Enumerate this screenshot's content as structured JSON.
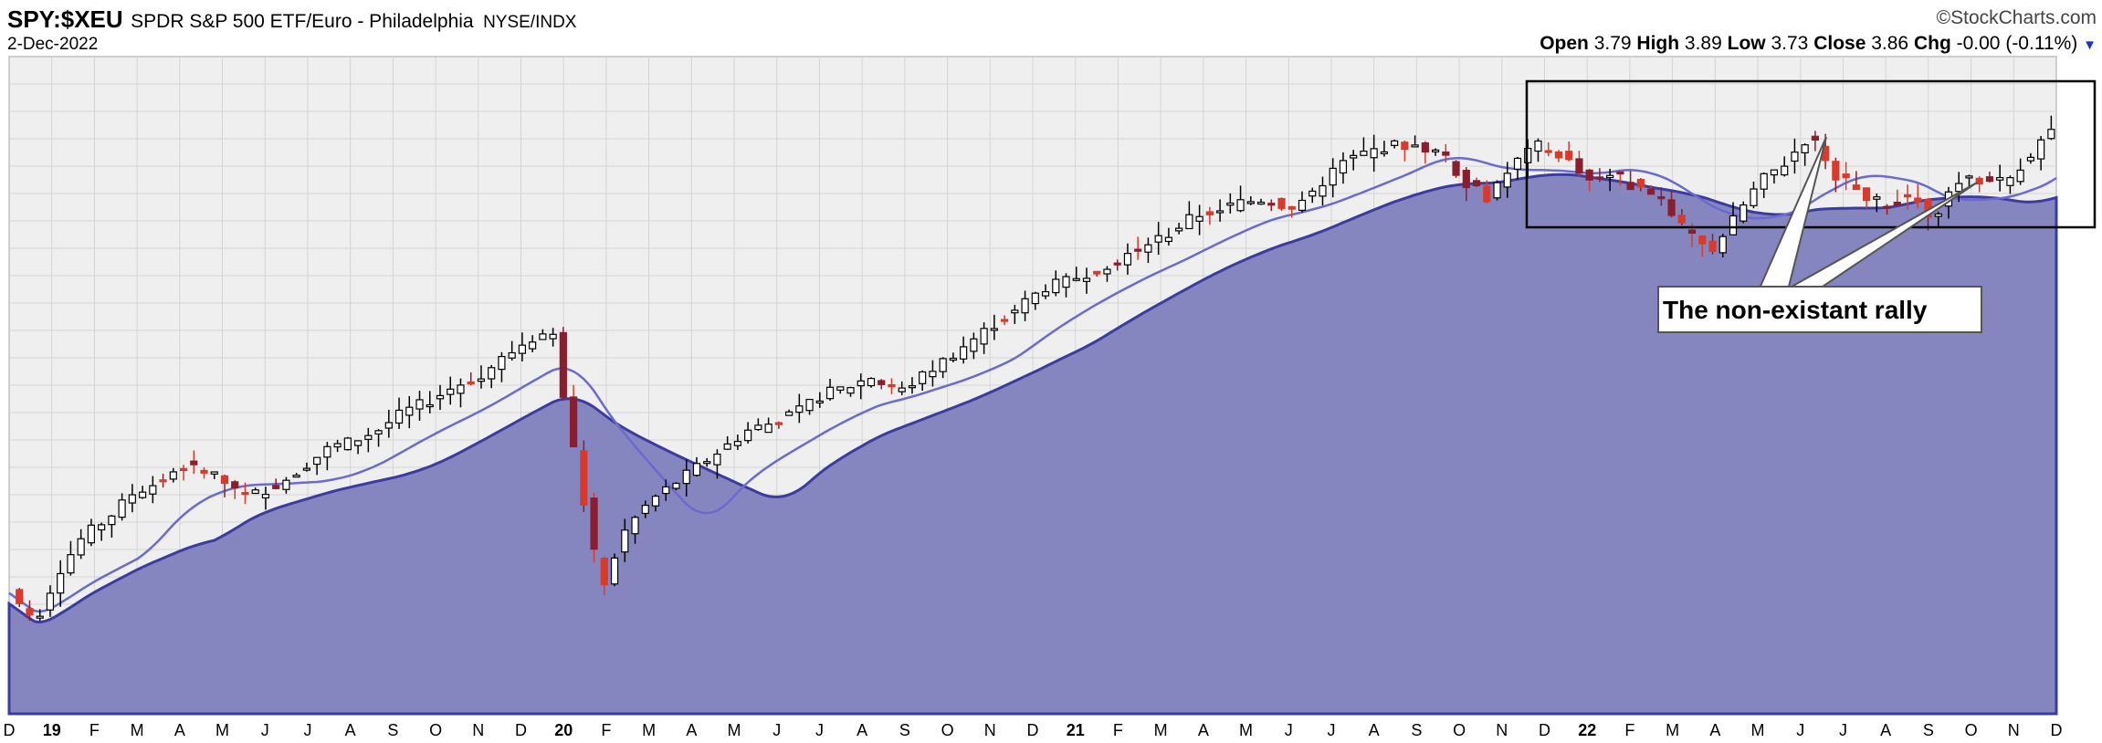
{
  "header": {
    "symbol": "SPY:$XEU",
    "description": "SPDR S&P 500 ETF/Euro - Philadelphia",
    "exchange": "NYSE/INDX",
    "date": "2-Dec-2022",
    "brand": "©StockCharts.com",
    "open_label": "Open",
    "open_value": "3.79",
    "high_label": "High",
    "high_value": "3.89",
    "low_label": "Low",
    "low_value": "3.73",
    "close_label": "Close",
    "close_value": "3.86",
    "chg_label": "Chg",
    "chg_value": "-0.00 (-0.11%)",
    "chg_arrow": "▼"
  },
  "colors": {
    "area_fill": "#8585c0",
    "area_line": "#3c3ca0",
    "ma_line": "#6a6ad0",
    "up_candle": "#ffffff",
    "down_candle": "#d93a2b",
    "dark_down_candle": "#8b1e2e",
    "plot_bg": "#efefef",
    "grid": "#d4d4d4"
  },
  "chart_data": {
    "type": "candlestick",
    "x_tick_labels": [
      "D",
      "19",
      "F",
      "M",
      "A",
      "M",
      "J",
      "J",
      "A",
      "S",
      "O",
      "N",
      "D",
      "20",
      "F",
      "M",
      "A",
      "M",
      "J",
      "J",
      "A",
      "S",
      "O",
      "N",
      "D",
      "21",
      "F",
      "M",
      "A",
      "M",
      "J",
      "J",
      "A",
      "S",
      "O",
      "N",
      "D",
      "22",
      "F",
      "M",
      "A",
      "M",
      "J",
      "J",
      "A",
      "S",
      "O",
      "N",
      "D"
    ],
    "x_range": [
      "2018-12",
      "2022-12"
    ],
    "annotation_text": "The non-existant rally",
    "close_series": [
      2.55,
      2.45,
      2.6,
      2.7,
      2.75,
      2.82,
      2.85,
      2.9,
      2.88,
      2.84,
      2.82,
      2.85,
      2.9,
      2.95,
      2.97,
      3.0,
      3.05,
      3.08,
      3.12,
      3.15,
      3.2,
      3.25,
      3.28,
      2.9,
      2.55,
      2.72,
      2.8,
      2.85,
      2.9,
      2.95,
      3.0,
      3.02,
      3.05,
      3.1,
      3.12,
      3.15,
      3.1,
      3.15,
      3.2,
      3.25,
      3.3,
      3.35,
      3.4,
      3.42,
      3.45,
      3.48,
      3.52,
      3.55,
      3.6,
      3.62,
      3.64,
      3.65,
      3.62,
      3.68,
      3.75,
      3.78,
      3.8,
      3.8,
      3.78,
      3.7,
      3.65,
      3.75,
      3.8,
      3.77,
      3.7,
      3.72,
      3.68,
      3.65,
      3.55,
      3.5,
      3.6,
      3.7,
      3.75,
      3.83,
      3.72,
      3.67,
      3.63,
      3.66,
      3.6,
      3.7,
      3.7,
      3.7,
      3.78,
      3.86
    ]
  }
}
